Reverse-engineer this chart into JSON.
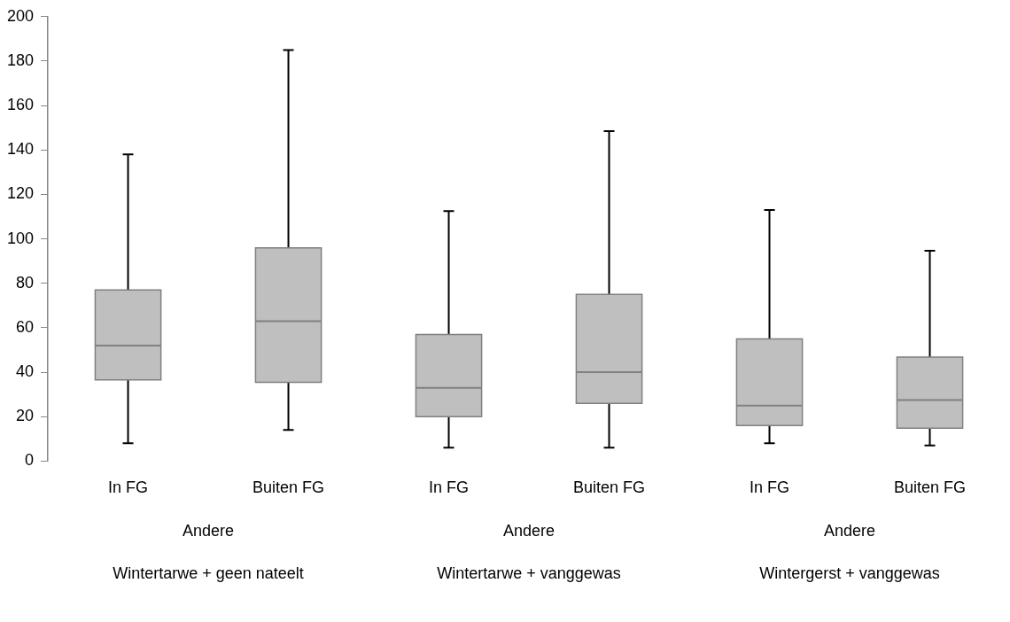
{
  "chart_data": {
    "type": "box",
    "categories": [
      "In FG",
      "Buiten FG",
      "In FG",
      "Buiten FG",
      "In FG",
      "Buiten FG"
    ],
    "boxes": [
      {
        "low": 8,
        "q1": 36.5,
        "median": 52,
        "q3": 77,
        "high": 138
      },
      {
        "low": 14,
        "q1": 35.4,
        "median": 63,
        "q3": 96,
        "high": 185
      },
      {
        "low": 6,
        "q1": 20,
        "median": 33,
        "q3": 57,
        "high": 112.5
      },
      {
        "low": 6,
        "q1": 26,
        "median": 40,
        "q3": 75,
        "high": 148.5
      },
      {
        "low": 8,
        "q1": 16,
        "median": 25,
        "q3": 55,
        "high": 113
      },
      {
        "low": 7,
        "q1": 14.8,
        "median": 27.5,
        "q3": 46.8,
        "high": 94.7
      }
    ],
    "color": "#bfbfbf",
    "annotations": [
      "Andere",
      "Andere",
      "Andere",
      "Wintertarwe + geen nateelt",
      "Wintertarwe + vanggewas",
      "Wintergerst + vanggewas"
    ],
    "ylim": [
      0,
      200
    ],
    "yticks": [
      0,
      20,
      40,
      60,
      80,
      100,
      120,
      140,
      160,
      180,
      200
    ],
    "grid": false,
    "legend": false
  }
}
